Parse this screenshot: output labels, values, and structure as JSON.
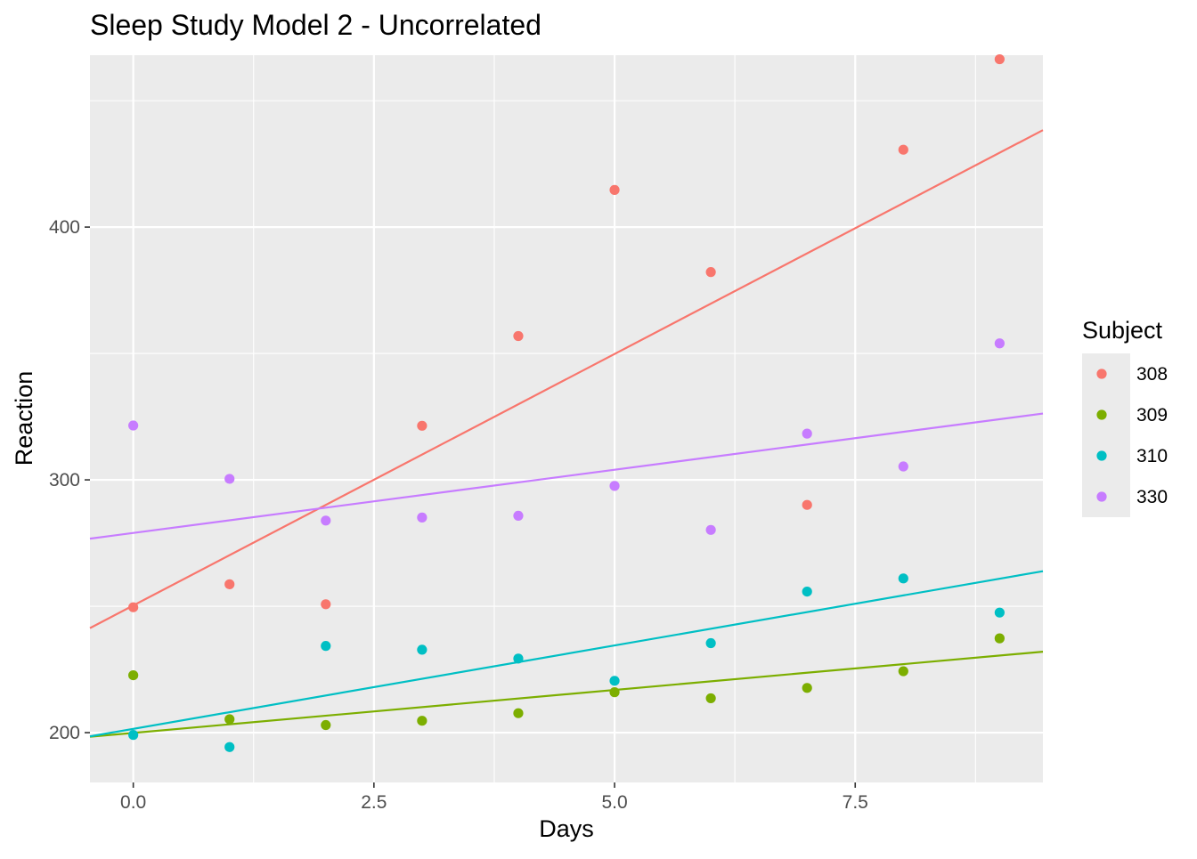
{
  "chart_data": {
    "type": "scatter",
    "title": "Sleep Study Model 2 - Uncorrelated",
    "xlabel": "Days",
    "ylabel": "Reaction",
    "xlim": [
      -0.45,
      9.45
    ],
    "ylim": [
      180.3,
      468
    ],
    "x_ticks": [
      0,
      2.5,
      5,
      7.5
    ],
    "x_tick_labels": [
      "0.0",
      "2.5",
      "5.0",
      "7.5"
    ],
    "y_ticks": [
      200,
      300,
      400
    ],
    "y_tick_labels": [
      "200",
      "300",
      "400"
    ],
    "grid": true,
    "legend": {
      "title": "Subject",
      "position": "right"
    },
    "series": [
      {
        "name": "308",
        "color": "#F8766D",
        "x": [
          0,
          1,
          2,
          3,
          4,
          5,
          6,
          7,
          8,
          9
        ],
        "y": [
          249.6,
          258.7,
          250.8,
          321.4,
          356.9,
          414.7,
          382.2,
          290.1,
          430.6,
          466.4
        ],
        "fit": {
          "intercept": 250.3,
          "slope": 19.9
        }
      },
      {
        "name": "309",
        "color": "#7CAE00",
        "x": [
          0,
          1,
          2,
          3,
          4,
          5,
          6,
          7,
          8,
          9
        ],
        "y": [
          222.7,
          205.3,
          203.0,
          204.7,
          207.7,
          216.0,
          213.6,
          217.7,
          224.3,
          237.3
        ],
        "fit": {
          "intercept": 199.9,
          "slope": 3.4
        }
      },
      {
        "name": "310",
        "color": "#00BFC4",
        "x": [
          0,
          1,
          2,
          3,
          4,
          5,
          6,
          7,
          8,
          9
        ],
        "y": [
          199.1,
          194.3,
          234.3,
          232.8,
          229.3,
          220.5,
          235.4,
          255.8,
          261.0,
          247.5
        ],
        "fit": {
          "intercept": 201.5,
          "slope": 6.6
        }
      },
      {
        "name": "330",
        "color": "#C77CFF",
        "x": [
          0,
          1,
          2,
          3,
          4,
          5,
          6,
          7,
          8,
          9
        ],
        "y": [
          321.5,
          300.4,
          283.9,
          285.1,
          285.8,
          297.6,
          280.2,
          318.3,
          305.3,
          354.0
        ],
        "fit": {
          "intercept": 279.0,
          "slope": 5.0
        }
      }
    ]
  }
}
